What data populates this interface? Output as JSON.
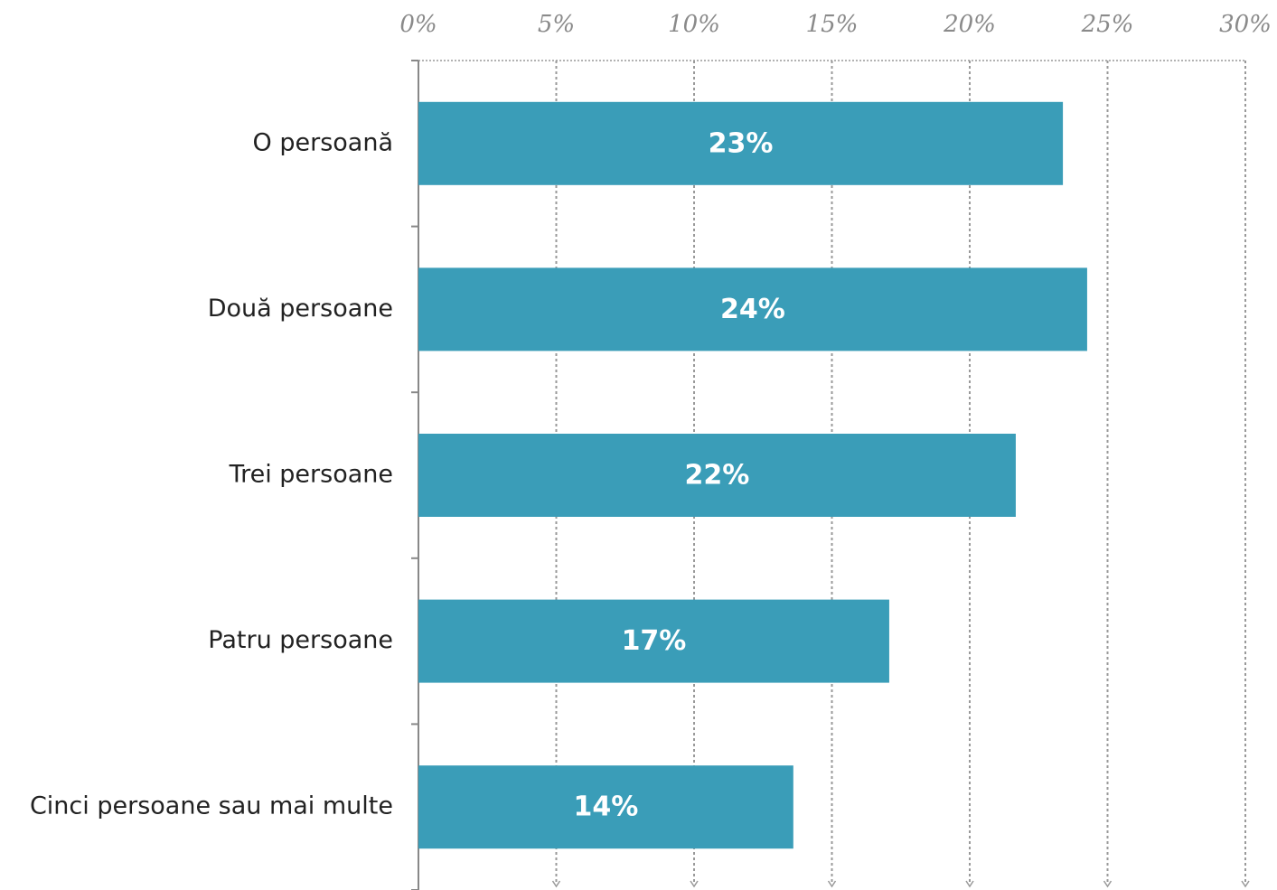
{
  "chart_data": {
    "type": "bar",
    "orientation": "horizontal",
    "categories": [
      "O persoană",
      "Două persoane",
      "Trei persoane",
      "Patru persoane",
      "Cinci persoane sau mai multe"
    ],
    "values": [
      23.38,
      24.26,
      21.67,
      17.08,
      13.6
    ],
    "value_labels": [
      "23%",
      "24%",
      "22%",
      "17%",
      "14%"
    ],
    "color": "#3a9db8",
    "xlim": [
      0,
      30
    ],
    "xticks": [
      {
        "value": 0,
        "label": "0%"
      },
      {
        "value": 5,
        "label": "5%"
      },
      {
        "value": 10,
        "label": "10%"
      },
      {
        "value": 15,
        "label": "15%"
      },
      {
        "value": 20,
        "label": "20%"
      },
      {
        "value": 25,
        "label": "25%"
      },
      {
        "value": 30,
        "label": "30%"
      }
    ],
    "grid": true
  }
}
